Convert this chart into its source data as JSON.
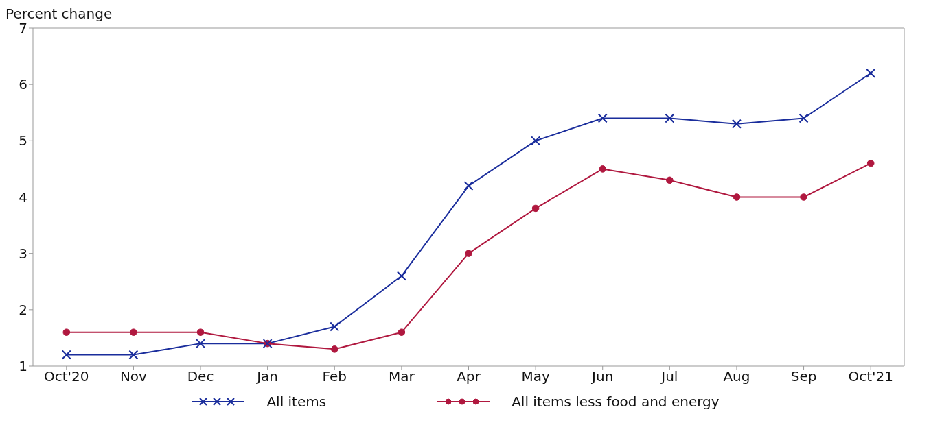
{
  "chart_data": {
    "type": "line",
    "ylabel": "Percent change",
    "categories": [
      "Oct'20",
      "Nov",
      "Dec",
      "Jan",
      "Feb",
      "Mar",
      "Apr",
      "May",
      "Jun",
      "Jul",
      "Aug",
      "Sep",
      "Oct'21"
    ],
    "series": [
      {
        "name": "All items",
        "color": "#1a2d9c",
        "marker": "cross",
        "values": [
          1.2,
          1.2,
          1.4,
          1.4,
          1.7,
          2.6,
          4.2,
          5.0,
          5.4,
          5.4,
          5.3,
          5.4,
          6.2
        ]
      },
      {
        "name": "All items less food and energy",
        "color": "#b0183f",
        "marker": "circle",
        "values": [
          1.6,
          1.6,
          1.6,
          1.4,
          1.3,
          1.6,
          3.0,
          3.8,
          4.5,
          4.3,
          4.0,
          4.0,
          4.6
        ]
      }
    ],
    "ylim": [
      1,
      7
    ],
    "yticks": [
      1,
      2,
      3,
      4,
      5,
      6,
      7
    ],
    "legend": "bottom",
    "line_style": "solid"
  }
}
